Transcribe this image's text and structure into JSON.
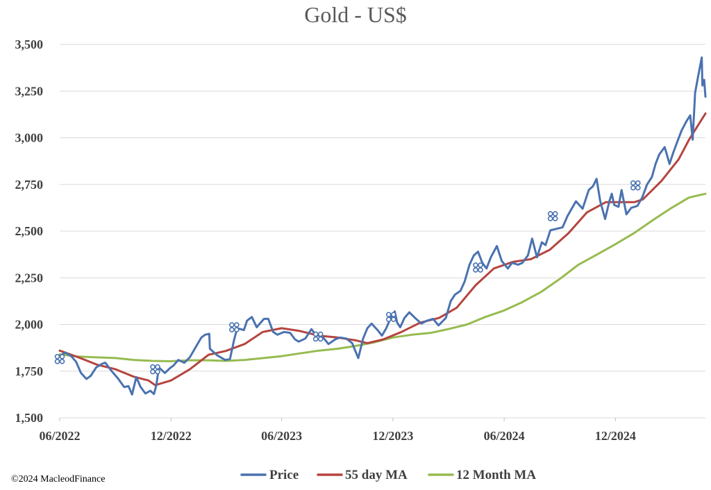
{
  "copyright": "©2024 MacleodFinance",
  "colors": {
    "price": "#4a72b0",
    "ma55": "#b5443f",
    "ma12": "#96bb50",
    "grid": "#d9d9d9",
    "axis_text": "#404040"
  },
  "chart_data": {
    "type": "line",
    "title": "Gold - US$",
    "xlabel": "",
    "ylabel": "",
    "ylim": [
      1500,
      3500
    ],
    "yticks": [
      "1,500",
      "1,750",
      "2,000",
      "2,250",
      "2,500",
      "2,750",
      "3,000",
      "3,250",
      "3,500"
    ],
    "ytick_values": [
      1500,
      1750,
      2000,
      2250,
      2500,
      2750,
      3000,
      3250,
      3500
    ],
    "xlim": [
      "2022-06-01",
      "2025-04-28"
    ],
    "xticks": [
      {
        "label": "06/2022",
        "date": "2022-06-01"
      },
      {
        "label": "12/2022",
        "date": "2022-12-01"
      },
      {
        "label": "06/2023",
        "date": "2023-06-01"
      },
      {
        "label": "12/2023",
        "date": "2023-12-01"
      },
      {
        "label": "06/2024",
        "date": "2024-06-01"
      },
      {
        "label": "12/2024",
        "date": "2024-12-01"
      }
    ],
    "grid": true,
    "legend_position": "bottom-center",
    "series": [
      {
        "name": "Price",
        "color": "#4a72b0",
        "points": [
          [
            "2022-06-01",
            1830
          ],
          [
            "2022-06-10",
            1850
          ],
          [
            "2022-06-20",
            1830
          ],
          [
            "2022-06-28",
            1800
          ],
          [
            "2022-07-06",
            1740
          ],
          [
            "2022-07-15",
            1708
          ],
          [
            "2022-07-22",
            1725
          ],
          [
            "2022-07-31",
            1770
          ],
          [
            "2022-08-10",
            1790
          ],
          [
            "2022-08-15",
            1795
          ],
          [
            "2022-08-25",
            1752
          ],
          [
            "2022-09-05",
            1710
          ],
          [
            "2022-09-15",
            1665
          ],
          [
            "2022-09-22",
            1670
          ],
          [
            "2022-09-28",
            1625
          ],
          [
            "2022-10-05",
            1718
          ],
          [
            "2022-10-12",
            1665
          ],
          [
            "2022-10-20",
            1630
          ],
          [
            "2022-10-28",
            1645
          ],
          [
            "2022-11-03",
            1628
          ],
          [
            "2022-11-07",
            1675
          ],
          [
            "2022-11-11",
            1770
          ],
          [
            "2022-11-21",
            1740
          ],
          [
            "2022-11-30",
            1768
          ],
          [
            "2022-12-05",
            1780
          ],
          [
            "2022-12-13",
            1810
          ],
          [
            "2022-12-23",
            1795
          ],
          [
            "2023-01-01",
            1824
          ],
          [
            "2023-01-10",
            1875
          ],
          [
            "2023-01-20",
            1930
          ],
          [
            "2023-01-26",
            1945
          ],
          [
            "2023-02-02",
            1950
          ],
          [
            "2023-02-03",
            1870
          ],
          [
            "2023-02-15",
            1835
          ],
          [
            "2023-02-28",
            1810
          ],
          [
            "2023-03-08",
            1815
          ],
          [
            "2023-03-15",
            1920
          ],
          [
            "2023-03-20",
            1980
          ],
          [
            "2023-03-31",
            1970
          ],
          [
            "2023-04-05",
            2020
          ],
          [
            "2023-04-13",
            2040
          ],
          [
            "2023-04-21",
            1985
          ],
          [
            "2023-05-03",
            2030
          ],
          [
            "2023-05-10",
            2030
          ],
          [
            "2023-05-18",
            1960
          ],
          [
            "2023-05-25",
            1945
          ],
          [
            "2023-06-05",
            1960
          ],
          [
            "2023-06-15",
            1955
          ],
          [
            "2023-06-23",
            1920
          ],
          [
            "2023-06-29",
            1908
          ],
          [
            "2023-07-10",
            1925
          ],
          [
            "2023-07-20",
            1975
          ],
          [
            "2023-07-27",
            1945
          ],
          [
            "2023-08-07",
            1935
          ],
          [
            "2023-08-17",
            1895
          ],
          [
            "2023-08-28",
            1920
          ],
          [
            "2023-09-05",
            1930
          ],
          [
            "2023-09-15",
            1925
          ],
          [
            "2023-09-25",
            1900
          ],
          [
            "2023-10-05",
            1820
          ],
          [
            "2023-10-13",
            1925
          ],
          [
            "2023-10-20",
            1980
          ],
          [
            "2023-10-27",
            2005
          ],
          [
            "2023-11-07",
            1965
          ],
          [
            "2023-11-13",
            1940
          ],
          [
            "2023-11-20",
            1980
          ],
          [
            "2023-11-28",
            2040
          ],
          [
            "2023-12-04",
            2070
          ],
          [
            "2023-12-08",
            2010
          ],
          [
            "2023-12-13",
            1985
          ],
          [
            "2023-12-20",
            2035
          ],
          [
            "2023-12-28",
            2065
          ],
          [
            "2024-01-08",
            2030
          ],
          [
            "2024-01-17",
            2005
          ],
          [
            "2024-01-26",
            2020
          ],
          [
            "2024-02-05",
            2030
          ],
          [
            "2024-02-14",
            1995
          ],
          [
            "2024-02-26",
            2035
          ],
          [
            "2024-03-05",
            2125
          ],
          [
            "2024-03-12",
            2160
          ],
          [
            "2024-03-21",
            2180
          ],
          [
            "2024-03-28",
            2230
          ],
          [
            "2024-04-05",
            2320
          ],
          [
            "2024-04-12",
            2370
          ],
          [
            "2024-04-19",
            2390
          ],
          [
            "2024-04-26",
            2330
          ],
          [
            "2024-05-03",
            2300
          ],
          [
            "2024-05-10",
            2360
          ],
          [
            "2024-05-20",
            2420
          ],
          [
            "2024-05-28",
            2340
          ],
          [
            "2024-06-07",
            2300
          ],
          [
            "2024-06-14",
            2330
          ],
          [
            "2024-06-24",
            2320
          ],
          [
            "2024-07-01",
            2330
          ],
          [
            "2024-07-10",
            2370
          ],
          [
            "2024-07-17",
            2460
          ],
          [
            "2024-07-25",
            2360
          ],
          [
            "2024-08-02",
            2440
          ],
          [
            "2024-08-08",
            2425
          ],
          [
            "2024-08-16",
            2505
          ],
          [
            "2024-08-23",
            2510
          ],
          [
            "2024-09-05",
            2520
          ],
          [
            "2024-09-13",
            2580
          ],
          [
            "2024-09-20",
            2620
          ],
          [
            "2024-09-27",
            2660
          ],
          [
            "2024-10-08",
            2620
          ],
          [
            "2024-10-18",
            2720
          ],
          [
            "2024-10-25",
            2740
          ],
          [
            "2024-10-31",
            2780
          ],
          [
            "2024-11-06",
            2660
          ],
          [
            "2024-11-14",
            2565
          ],
          [
            "2024-11-21",
            2660
          ],
          [
            "2024-11-25",
            2700
          ],
          [
            "2024-11-29",
            2640
          ],
          [
            "2024-12-06",
            2630
          ],
          [
            "2024-12-11",
            2720
          ],
          [
            "2024-12-19",
            2590
          ],
          [
            "2024-12-27",
            2625
          ],
          [
            "2025-01-06",
            2635
          ],
          [
            "2025-01-14",
            2680
          ],
          [
            "2025-01-22",
            2750
          ],
          [
            "2025-01-30",
            2790
          ],
          [
            "2025-02-05",
            2860
          ],
          [
            "2025-02-11",
            2910
          ],
          [
            "2025-02-20",
            2950
          ],
          [
            "2025-02-28",
            2860
          ],
          [
            "2025-03-06",
            2920
          ],
          [
            "2025-03-14",
            2990
          ],
          [
            "2025-03-20",
            3040
          ],
          [
            "2025-03-28",
            3090
          ],
          [
            "2025-04-03",
            3120
          ],
          [
            "2025-04-07",
            2990
          ],
          [
            "2025-04-11",
            3240
          ],
          [
            "2025-04-16",
            3330
          ],
          [
            "2025-04-22",
            3430
          ],
          [
            "2025-04-23",
            3280
          ],
          [
            "2025-04-26",
            3310
          ],
          [
            "2025-04-28",
            3220
          ]
        ]
      },
      {
        "name": "55 day MA",
        "color": "#b5443f",
        "points": [
          [
            "2022-06-01",
            1860
          ],
          [
            "2022-07-01",
            1825
          ],
          [
            "2022-08-01",
            1785
          ],
          [
            "2022-09-01",
            1760
          ],
          [
            "2022-10-01",
            1720
          ],
          [
            "2022-10-25",
            1700
          ],
          [
            "2022-11-05",
            1675
          ],
          [
            "2022-12-01",
            1700
          ],
          [
            "2023-01-01",
            1760
          ],
          [
            "2023-02-01",
            1838
          ],
          [
            "2023-03-01",
            1858
          ],
          [
            "2023-04-01",
            1895
          ],
          [
            "2023-05-01",
            1960
          ],
          [
            "2023-06-01",
            1980
          ],
          [
            "2023-07-01",
            1965
          ],
          [
            "2023-08-01",
            1940
          ],
          [
            "2023-09-01",
            1930
          ],
          [
            "2023-10-01",
            1915
          ],
          [
            "2023-10-20",
            1900
          ],
          [
            "2023-11-15",
            1920
          ],
          [
            "2023-12-15",
            1960
          ],
          [
            "2024-01-15",
            2010
          ],
          [
            "2024-02-15",
            2035
          ],
          [
            "2024-03-15",
            2090
          ],
          [
            "2024-04-15",
            2210
          ],
          [
            "2024-05-15",
            2300
          ],
          [
            "2024-06-15",
            2335
          ],
          [
            "2024-07-15",
            2350
          ],
          [
            "2024-08-15",
            2400
          ],
          [
            "2024-09-15",
            2490
          ],
          [
            "2024-10-15",
            2600
          ],
          [
            "2024-11-15",
            2655
          ],
          [
            "2024-12-15",
            2655
          ],
          [
            "2025-01-01",
            2655
          ],
          [
            "2025-01-15",
            2670
          ],
          [
            "2025-02-15",
            2770
          ],
          [
            "2025-03-15",
            2885
          ],
          [
            "2025-04-01",
            2990
          ],
          [
            "2025-04-28",
            3130
          ]
        ]
      },
      {
        "name": "12 Month MA",
        "color": "#96bb50",
        "points": [
          [
            "2022-06-01",
            1840
          ],
          [
            "2022-07-01",
            1828
          ],
          [
            "2022-09-01",
            1820
          ],
          [
            "2022-10-01",
            1810
          ],
          [
            "2022-11-01",
            1805
          ],
          [
            "2022-12-01",
            1803
          ],
          [
            "2023-01-01",
            1808
          ],
          [
            "2023-02-01",
            1808
          ],
          [
            "2023-03-01",
            1805
          ],
          [
            "2023-04-01",
            1810
          ],
          [
            "2023-06-01",
            1830
          ],
          [
            "2023-07-01",
            1845
          ],
          [
            "2023-08-01",
            1860
          ],
          [
            "2023-09-01",
            1870
          ],
          [
            "2023-10-01",
            1885
          ],
          [
            "2023-11-01",
            1905
          ],
          [
            "2023-12-01",
            1930
          ],
          [
            "2024-01-01",
            1945
          ],
          [
            "2024-02-01",
            1955
          ],
          [
            "2024-03-01",
            1975
          ],
          [
            "2024-04-01",
            2000
          ],
          [
            "2024-05-01",
            2040
          ],
          [
            "2024-06-01",
            2075
          ],
          [
            "2024-07-01",
            2120
          ],
          [
            "2024-08-01",
            2175
          ],
          [
            "2024-09-01",
            2245
          ],
          [
            "2024-10-01",
            2320
          ],
          [
            "2024-11-01",
            2375
          ],
          [
            "2024-12-01",
            2430
          ],
          [
            "2025-01-01",
            2490
          ],
          [
            "2025-02-01",
            2560
          ],
          [
            "2025-03-01",
            2620
          ],
          [
            "2025-04-01",
            2680
          ],
          [
            "2025-04-28",
            2700
          ]
        ]
      }
    ],
    "markers": [
      {
        "date": "2022-06-01",
        "value": 1815
      },
      {
        "date": "2022-11-05",
        "value": 1760
      },
      {
        "date": "2023-03-15",
        "value": 1985
      },
      {
        "date": "2023-07-31",
        "value": 1935
      },
      {
        "date": "2023-11-28",
        "value": 2040
      },
      {
        "date": "2024-04-19",
        "value": 2305
      },
      {
        "date": "2024-08-20",
        "value": 2580
      },
      {
        "date": "2025-01-03",
        "value": 2745
      }
    ]
  }
}
